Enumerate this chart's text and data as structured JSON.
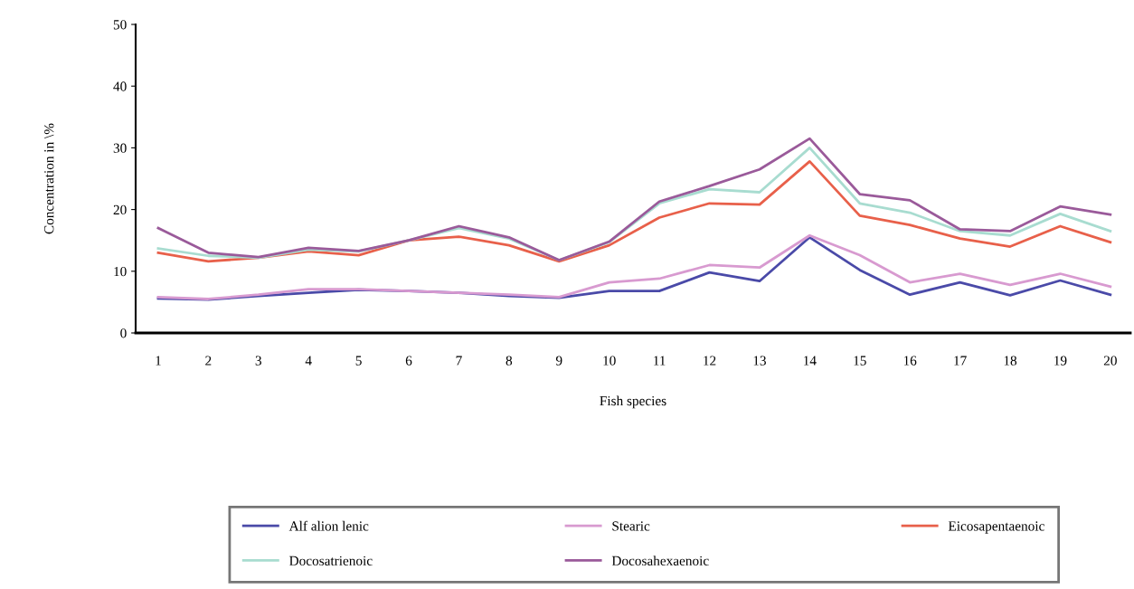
{
  "chart_data": {
    "type": "line",
    "xlabel": "Fish species",
    "ylabel": "Concentration in \\%",
    "categories": [
      "1",
      "2",
      "3",
      "4",
      "5",
      "6",
      "7",
      "8",
      "9",
      "10",
      "11",
      "12",
      "13",
      "14",
      "15",
      "16",
      "17",
      "18",
      "19",
      "20"
    ],
    "ylim": [
      0,
      50
    ],
    "yticks": [
      0,
      10,
      20,
      30,
      40,
      50
    ],
    "grid": false,
    "legend": "bottom",
    "marker": "none",
    "line_style": "solid",
    "series": [
      {
        "name": "Alf alion lenic",
        "color": "#4a4aa8",
        "values": [
          5.6,
          5.4,
          6,
          6.5,
          7,
          6.8,
          6.5,
          6,
          5.7,
          6.8,
          6.8,
          9.8,
          8.4,
          15.5,
          10.2,
          6.2,
          8.2,
          6.1,
          8.5,
          6.2
        ]
      },
      {
        "name": "Stearic",
        "color": "#d89ad0",
        "values": [
          5.8,
          5.5,
          6.2,
          7.1,
          7.1,
          6.8,
          6.5,
          6.2,
          5.8,
          8.2,
          8.8,
          11,
          10.6,
          15.8,
          12.6,
          8.2,
          9.6,
          7.8,
          9.6,
          7.5
        ]
      },
      {
        "name": "Eicosapentaenoic",
        "color": "#e8604a",
        "values": [
          13,
          11.6,
          12.2,
          13.2,
          12.6,
          15,
          15.6,
          14.2,
          11.6,
          14.2,
          18.7,
          21,
          20.8,
          27.8,
          19,
          17.5,
          15.3,
          14,
          17.3,
          14.7
        ]
      },
      {
        "name": "Docosatrienoic",
        "color": "#a8dcd0",
        "values": [
          13.7,
          12.5,
          12.2,
          13.5,
          13.2,
          15,
          17,
          15.3,
          11.8,
          14.7,
          21,
          23.3,
          22.8,
          30,
          21,
          19.5,
          16.5,
          15.8,
          19.3,
          16.5
        ]
      },
      {
        "name": "Docosahexaenoic",
        "color": "#9a5a9a",
        "values": [
          17,
          13,
          12.3,
          13.8,
          13.3,
          15,
          17.3,
          15.5,
          11.8,
          14.8,
          21.3,
          23.8,
          26.5,
          31.5,
          22.5,
          21.5,
          16.8,
          16.5,
          20.5,
          19.2
        ]
      }
    ]
  }
}
